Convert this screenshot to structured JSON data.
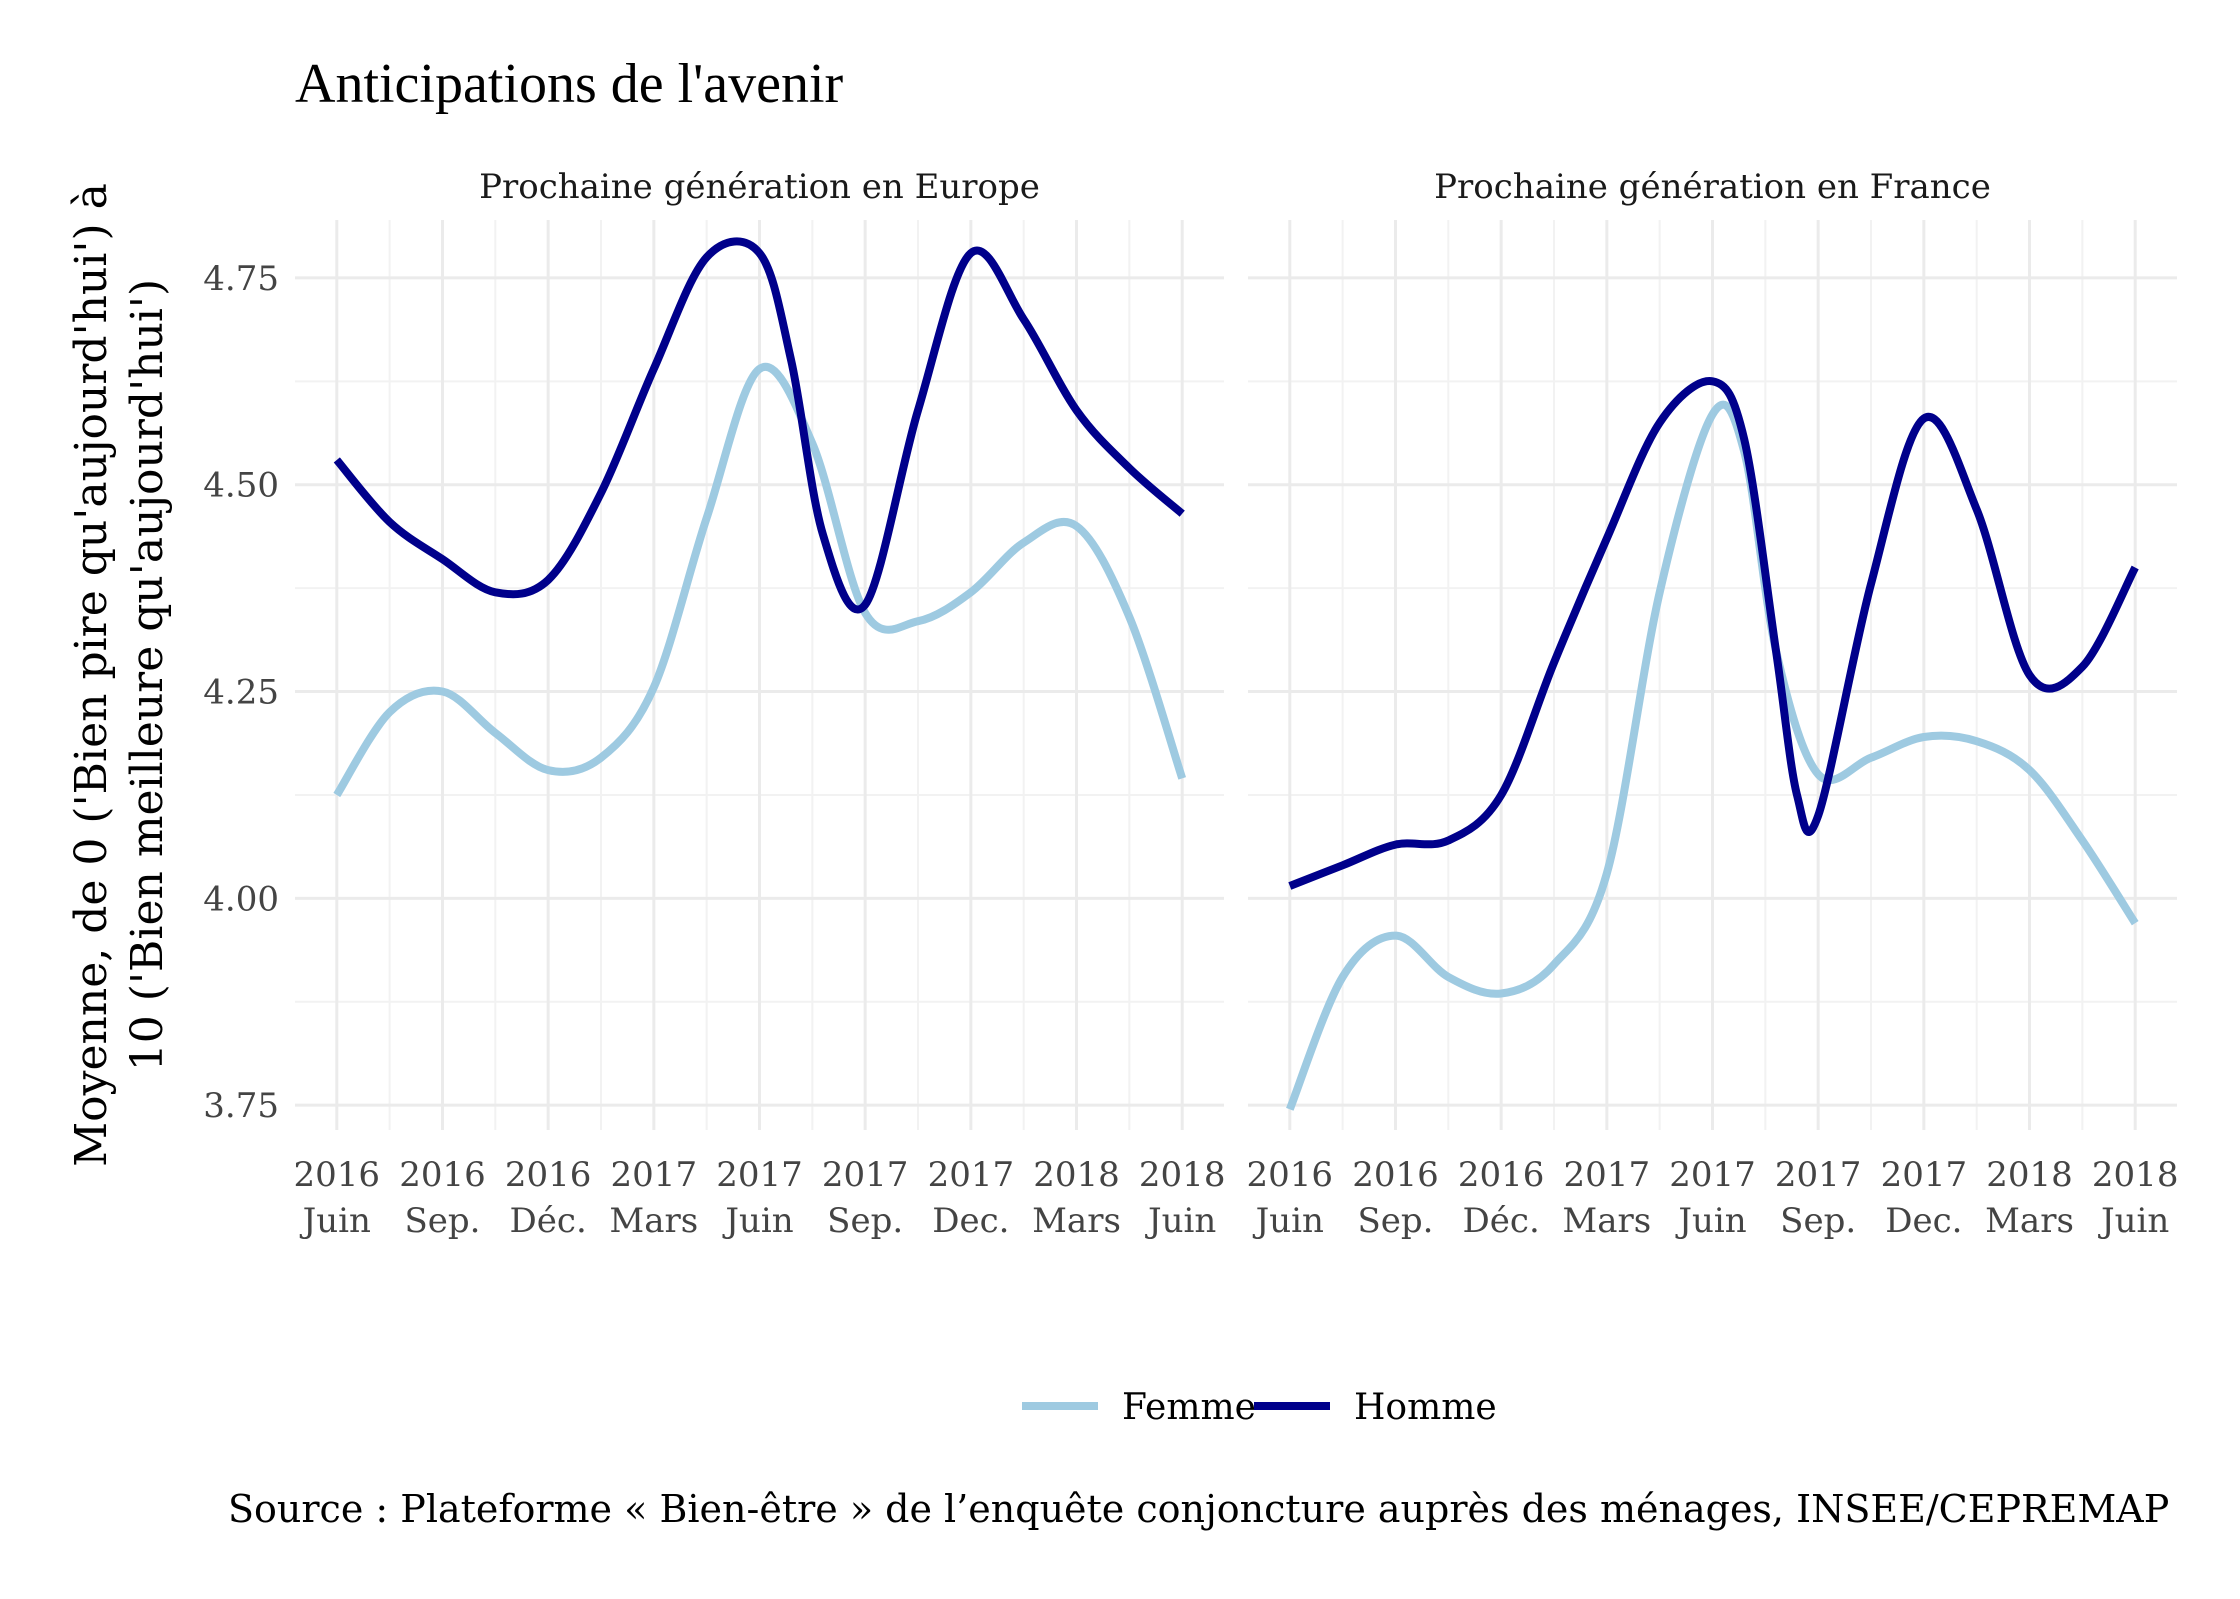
{
  "chart_data": {
    "type": "line",
    "title": "Anticipations de l'avenir",
    "ylabel_lines": [
      "Moyenne, de 0 ('Bien pire qu'aujourd'hui') à",
      "10 ('Bien meilleure qu'aujourd'hui')"
    ],
    "caption": "Source : Plateforme « Bien-être » de l’enquête conjoncture auprès des ménages, INSEE/CEPREMAP",
    "ylim": [
      3.72,
      4.82
    ],
    "yticks": [
      3.75,
      4.0,
      4.25,
      4.5,
      4.75
    ],
    "ytick_labels": [
      "3.75",
      "4.00",
      "4.25",
      "4.50",
      "4.75"
    ],
    "x_index_range": [
      0,
      8
    ],
    "x_tick_labels": [
      [
        "2016",
        "Juin"
      ],
      [
        "2016",
        "Sep."
      ],
      [
        "2016",
        "Déc."
      ],
      [
        "2017",
        "Mars"
      ],
      [
        "2017",
        "Juin"
      ],
      [
        "2017",
        "Sep."
      ],
      [
        "2017",
        "Dec."
      ],
      [
        "2018",
        "Mars"
      ],
      [
        "2018",
        "Juin"
      ]
    ],
    "grid": true,
    "legend": {
      "placement": "bottom",
      "items": [
        {
          "name": "Femme",
          "color": "#9ecae1"
        },
        {
          "name": "Homme",
          "color": "#00008b"
        }
      ]
    },
    "panels": [
      {
        "strip": "Prochaine génération en Europe",
        "series": [
          {
            "name": "Femme",
            "color": "#9ecae1",
            "x": [
              0,
              0.5,
              1,
              1.5,
              2,
              2.5,
              3,
              3.5,
              4,
              4.5,
              5,
              5.5,
              6,
              6.5,
              7,
              7.5,
              8
            ],
            "y": [
              4.125,
              4.225,
              4.25,
              4.2,
              4.155,
              4.17,
              4.255,
              4.46,
              4.64,
              4.55,
              4.345,
              4.335,
              4.37,
              4.43,
              4.45,
              4.34,
              4.145
            ]
          },
          {
            "name": "Homme",
            "color": "#00008b",
            "x": [
              0,
              0.5,
              1,
              1.5,
              2,
              2.5,
              3,
              3.5,
              4,
              4.3,
              4.6,
              5,
              5.5,
              6,
              6.5,
              7,
              7.5,
              8
            ],
            "y": [
              4.53,
              4.455,
              4.41,
              4.37,
              4.385,
              4.49,
              4.64,
              4.775,
              4.78,
              4.65,
              4.44,
              4.355,
              4.59,
              4.78,
              4.7,
              4.59,
              4.52,
              4.465
            ]
          }
        ]
      },
      {
        "strip": "Prochaine génération en France",
        "series": [
          {
            "name": "Femme",
            "color": "#9ecae1",
            "x": [
              0,
              0.5,
              1,
              1.5,
              2,
              2.5,
              3,
              3.5,
              4,
              4.3,
              4.6,
              5,
              5.5,
              6,
              6.5,
              7,
              7.5,
              8
            ],
            "y": [
              3.745,
              3.905,
              3.955,
              3.905,
              3.885,
              3.92,
              4.03,
              4.37,
              4.585,
              4.54,
              4.3,
              4.15,
              4.17,
              4.195,
              4.19,
              4.155,
              4.07,
              3.97
            ]
          },
          {
            "name": "Homme",
            "color": "#00008b",
            "x": [
              0,
              0.5,
              1,
              1.5,
              2,
              2.5,
              3,
              3.5,
              4,
              4.3,
              4.6,
              4.8,
              5,
              5.5,
              6,
              6.5,
              7,
              7.5,
              8
            ],
            "y": [
              4.015,
              4.04,
              4.065,
              4.07,
              4.125,
              4.285,
              4.435,
              4.575,
              4.625,
              4.555,
              4.3,
              4.125,
              4.1,
              4.38,
              4.58,
              4.47,
              4.27,
              4.28,
              4.4
            ]
          }
        ]
      }
    ]
  }
}
